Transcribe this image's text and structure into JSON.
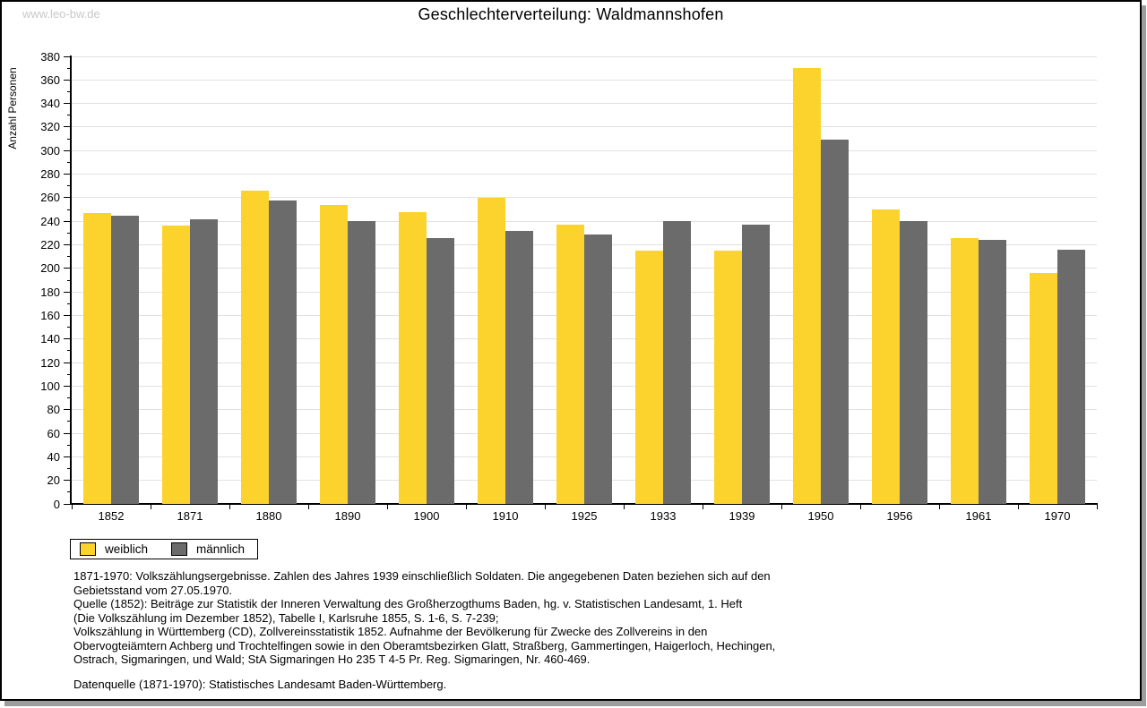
{
  "page": {
    "watermark": "www.leo-bw.de",
    "title": "Geschlechterverteilung: Waldmannshofen"
  },
  "chart_data": {
    "type": "bar",
    "title": "Geschlechterverteilung: Waldmannshofen",
    "xlabel": "",
    "ylabel": "Anzahl Personen",
    "ylim": [
      0,
      380
    ],
    "ytick_major": 20,
    "ytick_minor": 10,
    "grid": true,
    "legend_position": "bottom-left",
    "categories": [
      "1852",
      "1871",
      "1880",
      "1890",
      "1900",
      "1910",
      "1925",
      "1933",
      "1939",
      "1950",
      "1956",
      "1961",
      "1970"
    ],
    "series": [
      {
        "name": "weiblich",
        "color": "#FCD32D",
        "values": [
          247,
          236,
          266,
          254,
          248,
          260,
          237,
          215,
          215,
          370,
          250,
          226,
          196
        ]
      },
      {
        "name": "männlich",
        "color": "#6B6B6B",
        "values": [
          245,
          242,
          258,
          240,
          226,
          232,
          229,
          240,
          237,
          309,
          240,
          224,
          216
        ]
      }
    ]
  },
  "footnotes": {
    "lines": [
      "1871-1970: Volkszählungsergebnisse. Zahlen des Jahres 1939 einschließlich Soldaten. Die angegebenen Daten beziehen sich auf den",
      "Gebietsstand vom 27.05.1970.",
      "Quelle (1852): Beiträge zur Statistik der Inneren Verwaltung des Großherzogthums Baden, hg. v. Statistischen Landesamt, 1. Heft",
      "(Die Volkszählung im Dezember 1852), Tabelle I, Karlsruhe 1855, S. 1-6, S. 7-239;",
      "Volkszählung in Württemberg (CD), Zollvereinsstatistik 1852. Aufnahme der Bevölkerung für Zwecke des Zollvereins in den",
      "Obervogteiämtern Achberg und Trochtelfingen sowie in den Oberamtsbezirken Glatt, Straßberg, Gammertingen, Haigerloch, Hechingen,",
      "Ostrach, Sigmaringen, und Wald; StA Sigmaringen Ho 235 T 4-5 Pr. Reg. Sigmaringen, Nr. 460-469."
    ],
    "datenquelle": "Datenquelle (1871-1970): Statistisches Landesamt Baden-Württemberg."
  }
}
